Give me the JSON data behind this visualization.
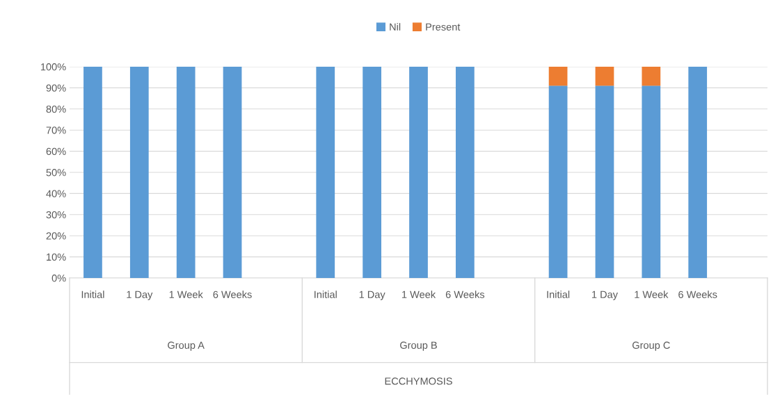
{
  "chart_data": {
    "type": "bar",
    "stacked": true,
    "categories": [
      "Initial",
      "1 Day",
      "1 Week",
      "6 Weeks",
      null,
      "Initial",
      "1 Day",
      "1 Week",
      "6 Weeks",
      null,
      "Initial",
      "1 Day",
      "1 Week",
      "6 Weeks",
      null
    ],
    "series": [
      {
        "name": "Nil",
        "color": "#5b9bd5",
        "values": [
          100,
          100,
          100,
          100,
          null,
          100,
          100,
          100,
          100,
          null,
          91,
          91,
          91,
          100,
          null
        ]
      },
      {
        "name": "Present",
        "color": "#ed7d31",
        "values": [
          0,
          0,
          0,
          0,
          null,
          0,
          0,
          0,
          0,
          null,
          9,
          9,
          9,
          0,
          null
        ]
      }
    ],
    "annotations": [
      "Group A",
      "Group B",
      "Group C",
      "ECCHYMOSIS"
    ],
    "ylim": [
      0,
      100
    ],
    "yticks": [
      {
        "value": 0,
        "label": "0%"
      },
      {
        "value": 10,
        "label": "10%"
      },
      {
        "value": 20,
        "label": "20%"
      },
      {
        "value": 30,
        "label": "30%"
      },
      {
        "value": 40,
        "label": "40%"
      },
      {
        "value": 50,
        "label": "50%"
      },
      {
        "value": 60,
        "label": "60%"
      },
      {
        "value": 70,
        "label": "70%"
      },
      {
        "value": 80,
        "label": "80%"
      },
      {
        "value": 90,
        "label": "90%"
      },
      {
        "value": 100,
        "label": "100%"
      }
    ],
    "grid": "y",
    "legend": "top"
  }
}
